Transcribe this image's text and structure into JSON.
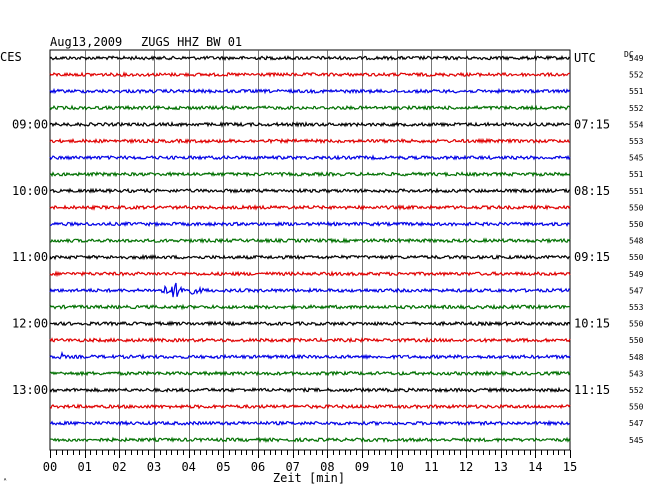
{
  "header": {
    "date": "Aug13,2009",
    "station": "ZUGS HHZ BW 01",
    "left_label": "CES",
    "right_label": "UTC",
    "dc_label": "DC"
  },
  "corner_mark": "ᴬ",
  "chart_data": {
    "type": "line",
    "title": "Aug13,2009   ZUGS HHZ BW 01",
    "xlabel": "Zeit [min]",
    "ylabel": "",
    "xlim": [
      0,
      15
    ],
    "x_ticks": [
      "00",
      "01",
      "02",
      "03",
      "04",
      "05",
      "06",
      "07",
      "08",
      "09",
      "10",
      "11",
      "12",
      "13",
      "14",
      "15"
    ],
    "grid": true,
    "colors": [
      "#000000",
      "#e00000",
      "#0000e6",
      "#007000"
    ],
    "left_time_labels": [
      {
        "trace": 4,
        "label": "09:00"
      },
      {
        "trace": 8,
        "label": "10:00"
      },
      {
        "trace": 12,
        "label": "11:00"
      },
      {
        "trace": 16,
        "label": "12:00"
      },
      {
        "trace": 20,
        "label": "13:00"
      }
    ],
    "right_time_labels": [
      {
        "trace": 0,
        "label": "UTC"
      },
      {
        "trace": 4,
        "label": "07:15"
      },
      {
        "trace": 8,
        "label": "08:15"
      },
      {
        "trace": 12,
        "label": "09:15"
      },
      {
        "trace": 16,
        "label": "10:15"
      },
      {
        "trace": 20,
        "label": "11:15"
      }
    ],
    "dc_offsets": [
      "549",
      "552",
      "551",
      "552",
      "554",
      "553",
      "545",
      "551",
      "551",
      "550",
      "550",
      "548",
      "550",
      "549",
      "547",
      "553",
      "550",
      "550",
      "548",
      "543",
      "552",
      "550",
      "547",
      "545"
    ],
    "events": [
      {
        "trace": 14,
        "start_min": 3.0,
        "end_min": 5.2,
        "peak_min": 3.6
      },
      {
        "trace": 18,
        "start_min": 0.2,
        "end_min": 0.6,
        "peak_min": 0.35
      }
    ]
  }
}
